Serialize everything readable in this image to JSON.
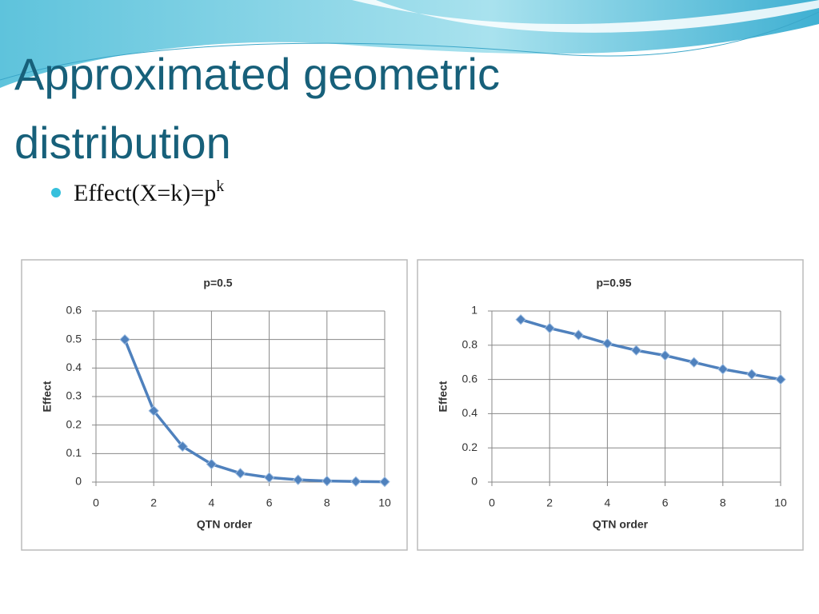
{
  "title": "Approximated geometric distribution",
  "bullet": {
    "text": "Effect(X=k)=p",
    "superscript": "k"
  },
  "chart_data": [
    {
      "type": "line",
      "title": "p=0.5",
      "xlabel": "QTN order",
      "ylabel": "Effect",
      "x": [
        1,
        2,
        3,
        4,
        5,
        6,
        7,
        8,
        9,
        10
      ],
      "values": [
        0.5,
        0.25,
        0.125,
        0.063,
        0.031,
        0.016,
        0.008,
        0.004,
        0.002,
        0.001
      ],
      "color": "#4f81bd",
      "xlim": [
        0,
        10
      ],
      "xticks": [
        0,
        2,
        4,
        6,
        8,
        10
      ],
      "ylim": [
        0,
        0.6
      ],
      "yticks": [
        0,
        0.1,
        0.2,
        0.3,
        0.4,
        0.5,
        0.6
      ],
      "grid": true
    },
    {
      "type": "line",
      "title": "p=0.95",
      "xlabel": "QTN order",
      "ylabel": "Effect",
      "x": [
        1,
        2,
        3,
        4,
        5,
        6,
        7,
        8,
        9,
        10
      ],
      "values": [
        0.95,
        0.9,
        0.86,
        0.81,
        0.77,
        0.74,
        0.7,
        0.66,
        0.63,
        0.6
      ],
      "color": "#4f81bd",
      "xlim": [
        0,
        10
      ],
      "xticks": [
        0,
        2,
        4,
        6,
        8,
        10
      ],
      "ylim": [
        0,
        1
      ],
      "yticks": [
        0,
        0.2,
        0.4,
        0.6,
        0.8,
        1
      ],
      "grid": true
    }
  ]
}
